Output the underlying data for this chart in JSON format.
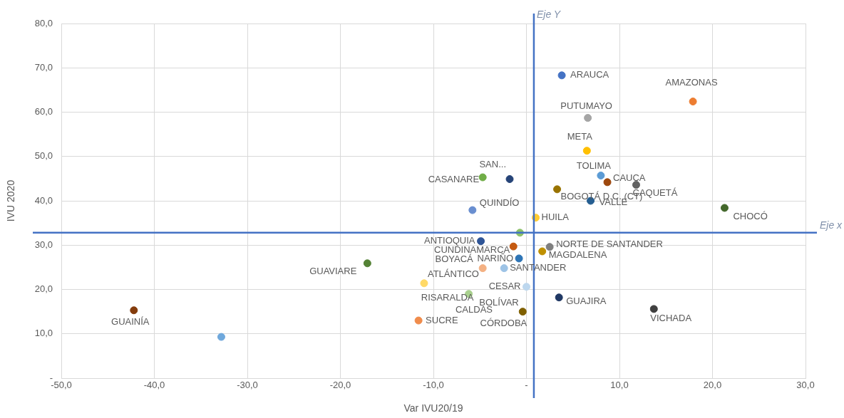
{
  "chart_data": {
    "type": "scatter",
    "xlabel": "Var IVU20/19",
    "ylabel": "IVU 2020",
    "grid": true,
    "legend": false,
    "marker": "circle",
    "xlim": [
      -50,
      30
    ],
    "xticks": [
      {
        "value": -50,
        "label": "-50,0"
      },
      {
        "value": -40,
        "label": "-40,0"
      },
      {
        "value": -30,
        "label": "-30,0"
      },
      {
        "value": -20,
        "label": "-20,0"
      },
      {
        "value": -10,
        "label": "-10,0"
      },
      {
        "value": 0,
        "label": "-"
      },
      {
        "value": 10,
        "label": "10,0"
      },
      {
        "value": 20,
        "label": "20,0"
      },
      {
        "value": 30,
        "label": "30,0"
      }
    ],
    "ylim": [
      0,
      80
    ],
    "yticks": [
      {
        "value": 0,
        "label": "-"
      },
      {
        "value": 10,
        "label": "10,0"
      },
      {
        "value": 20,
        "label": "20,0"
      },
      {
        "value": 30,
        "label": "30,0"
      },
      {
        "value": 40,
        "label": "40,0"
      },
      {
        "value": 50,
        "label": "50,0"
      },
      {
        "value": 60,
        "label": "60,0"
      },
      {
        "value": 70,
        "label": "70,0"
      },
      {
        "value": 80,
        "label": "80,0"
      }
    ],
    "ref_lines": [
      {
        "axis": "x",
        "value": 0.8,
        "label": "Eje Y",
        "color": "#4472c4"
      },
      {
        "axis": "y",
        "value": 32.8,
        "label": "Eje x",
        "color": "#4472c4"
      }
    ],
    "annotations": [
      "CALDAS",
      "BOLÍVAR"
    ],
    "series": [
      {
        "name": "ARAUCA",
        "color": "#4472c4",
        "x": [
          3.8
        ],
        "values": [
          68.3
        ]
      },
      {
        "name": "AMAZONAS",
        "color": "#ed7d31",
        "x": [
          17.9
        ],
        "values": [
          62.4
        ]
      },
      {
        "name": "PUTUMAYO",
        "color": "#a5a5a5",
        "x": [
          6.6
        ],
        "values": [
          58.7
        ]
      },
      {
        "name": "META",
        "color": "#ffc000",
        "x": [
          6.5
        ],
        "values": [
          51.3
        ]
      },
      {
        "name": "SAN...",
        "color": "#264478",
        "x": [
          -1.8
        ],
        "values": [
          44.9
        ]
      },
      {
        "name": "CASANARE",
        "color": "#70ad47",
        "x": [
          -4.7
        ],
        "values": [
          45.3
        ]
      },
      {
        "name": "TOLIMA",
        "color": "#5b9bd5",
        "x": [
          8.0
        ],
        "values": [
          45.7
        ]
      },
      {
        "name": "CAUCA",
        "color": "#9e480e",
        "x": [
          8.7
        ],
        "values": [
          44.2
        ]
      },
      {
        "name": "CAQUETÁ",
        "color": "#636363",
        "x": [
          11.8
        ],
        "values": [
          43.6
        ]
      },
      {
        "name": "BOGOTÁ D.C. (CT)",
        "color": "#997300",
        "x": [
          3.3
        ],
        "values": [
          42.6
        ]
      },
      {
        "name": "VALLE",
        "color": "#255e91",
        "x": [
          6.9
        ],
        "values": [
          40.0
        ]
      },
      {
        "name": "QUINDÍO",
        "color": "#698ed0",
        "x": [
          -5.8
        ],
        "values": [
          37.9
        ]
      },
      {
        "name": "HUILA",
        "color": "#ffcd33",
        "x": [
          1.0
        ],
        "values": [
          36.2
        ]
      },
      {
        "name": "CHOCÓ",
        "color": "#43682b",
        "x": [
          21.3
        ],
        "values": [
          38.4
        ]
      },
      {
        "color": "#8cc168",
        "x": [
          -0.7
        ],
        "values": [
          32.8
        ]
      },
      {
        "name": "ANTIOQUIA",
        "color": "#2f5597",
        "x": [
          -4.9
        ],
        "values": [
          30.9
        ]
      },
      {
        "name": "CUNDINAMARCA",
        "color": "#c55a11",
        "x": [
          -1.4
        ],
        "values": [
          29.7
        ]
      },
      {
        "name": "NORTE DE SANTANDER",
        "color": "#7f7f7f",
        "x": [
          2.5
        ],
        "values": [
          29.6
        ]
      },
      {
        "name": "MAGDALENA",
        "color": "#bf9000",
        "x": [
          1.7
        ],
        "values": [
          28.6
        ]
      },
      {
        "name": "NARIÑO",
        "color": "#2e75b6",
        "x": [
          -0.8
        ],
        "values": [
          27.0
        ]
      },
      {
        "name": "BOYACÁ",
        "color": "#f4b183",
        "x": [
          -4.7
        ],
        "values": [
          24.8
        ]
      },
      {
        "name": "SANTANDER",
        "color": "#9dc3e6",
        "x": [
          -2.4
        ],
        "values": [
          24.8
        ]
      },
      {
        "name": "CESAR",
        "color": "#bdd7ee",
        "x": [
          0.0
        ],
        "values": [
          20.6
        ]
      },
      {
        "name": "ATLÁNTICO",
        "color": "#ffd966",
        "x": [
          -11.0
        ],
        "values": [
          21.4
        ]
      },
      {
        "name": "RISARALDA",
        "color": "#a9d18e",
        "x": [
          -6.2
        ],
        "values": [
          19.0
        ]
      },
      {
        "name": "GUAJIRA",
        "color": "#203864",
        "x": [
          3.5
        ],
        "values": [
          18.2
        ]
      },
      {
        "name": "CÓRDOBA",
        "color": "#806000",
        "x": [
          -0.4
        ],
        "values": [
          15.0
        ]
      },
      {
        "name": "SUCRE",
        "color": "#f08c4c",
        "x": [
          -11.6
        ],
        "values": [
          13.0
        ]
      },
      {
        "name": "VICHADA",
        "color": "#404040",
        "x": [
          13.7
        ],
        "values": [
          15.6
        ]
      },
      {
        "name": "GUAINÍA",
        "color": "#843c0c",
        "x": [
          -42.2
        ],
        "values": [
          15.3
        ]
      },
      {
        "color": "#6fa8dc",
        "x": [
          -32.8
        ],
        "values": [
          9.3
        ]
      },
      {
        "name": "GUAVIARE",
        "color": "#548235",
        "x": [
          -17.1
        ],
        "values": [
          25.9
        ]
      }
    ]
  }
}
